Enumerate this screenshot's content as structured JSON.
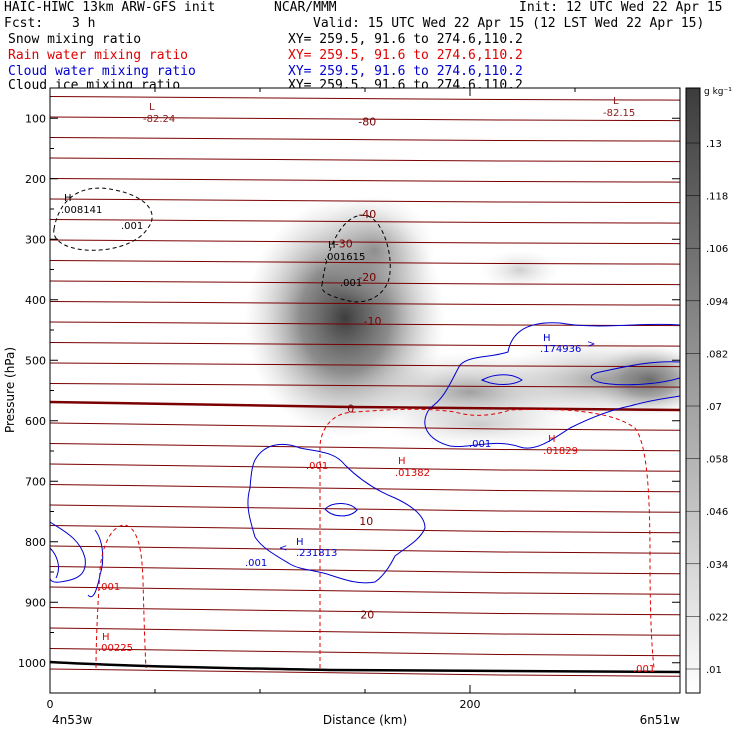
{
  "header": {
    "title": "HAIC-HIWC 13km ARW-GFS init",
    "org": "NCAR/MMM",
    "init": "Init: 12 UTC Wed 22 Apr 15",
    "fcst_label": "Fcst:",
    "fcst_value": "3 h",
    "valid": "Valid: 15 UTC Wed 22 Apr 15 (12 LST Wed 22 Apr 15)"
  },
  "fields": [
    {
      "name": "Snow mixing ratio",
      "xy": "XY= 259.5, 91.6 to 274.6,110.2",
      "color": "#000000"
    },
    {
      "name": "Rain water mixing ratio",
      "xy": "XY= 259.5, 91.6 to 274.6,110.2",
      "color": "#e00000"
    },
    {
      "name": "Cloud water mixing ratio",
      "xy": "XY= 259.5, 91.6 to 274.6,110.2",
      "color": "#0000d0"
    },
    {
      "name": "Cloud ice mixing ratio",
      "xy": "XY= 259.5, 91.6 to 274.6,110.2",
      "color": "#000000"
    }
  ],
  "chart_data": {
    "type": "heatmap",
    "description_fields": [
      "cloud ice mixing ratio (shaded)",
      "temperature contours",
      "snow/rain/cloud water contours"
    ],
    "xlabel": "Distance (km)",
    "ylabel": "Pressure (hPa)",
    "x_ticks": [
      0,
      200
    ],
    "y_ticks": [
      100,
      200,
      300,
      400,
      500,
      600,
      700,
      800,
      900,
      1000
    ],
    "xlim": [
      0,
      300
    ],
    "ylim": [
      1050,
      50
    ],
    "x_end_labels": {
      "left": "4n53w",
      "right": "6n51w"
    },
    "colorbar": {
      "unit": "g kg⁻¹",
      "ticks": [
        ".01",
        ".022",
        ".034",
        ".046",
        ".058",
        ".07",
        ".082",
        ".094",
        ".106",
        ".118",
        ".13"
      ]
    },
    "temperature_labels": [
      {
        "text": "-80",
        "x": 200,
        "p": 105
      },
      {
        "text": "-40",
        "x": 200,
        "p": 258
      },
      {
        "text": "-30",
        "x": 187,
        "p": 307
      },
      {
        "text": "-20",
        "x": 200,
        "p": 362
      },
      {
        "text": "-10",
        "x": 205,
        "p": 435
      },
      {
        "text": "0",
        "x": 184,
        "p": 580
      },
      {
        "text": "10",
        "x": 199,
        "p": 766
      },
      {
        "text": "20",
        "x": 200,
        "p": 920
      }
    ],
    "extrema": [
      {
        "kind": "L",
        "value": "-82.24",
        "color": "#8b1a1a"
      },
      {
        "kind": "L",
        "value": "-82.15",
        "color": "#8b1a1a"
      },
      {
        "kind": "H",
        "value": ".008141",
        "color": "#000000"
      },
      {
        "kind": "H",
        "value": ".001615",
        "color": "#000000"
      },
      {
        "kind": "H",
        "value": ".174936",
        "color": "#0000d0"
      },
      {
        "kind": "H",
        "value": ".01829",
        "color": "#e00000"
      },
      {
        "kind": "H",
        "value": ".01382",
        "color": "#e00000"
      },
      {
        "kind": "H",
        "value": ".231813",
        "color": "#0000d0"
      },
      {
        "kind": "H",
        "value": ".00225",
        "color": "#e00000"
      }
    ],
    "contour_labels": [
      {
        "text": ".001",
        "color": "#000000"
      },
      {
        "text": ".001",
        "color": "#000000"
      },
      {
        "text": ".001",
        "color": "#0000d0"
      },
      {
        "text": ".001",
        "color": "#e00000"
      },
      {
        "text": ".001",
        "color": "#0000d0"
      },
      {
        "text": ".001",
        "color": "#e00000"
      },
      {
        "text": ".001",
        "color": "#e00000"
      }
    ],
    "freezing_level_hpa": 578,
    "ground_level_hpa": 1005
  }
}
